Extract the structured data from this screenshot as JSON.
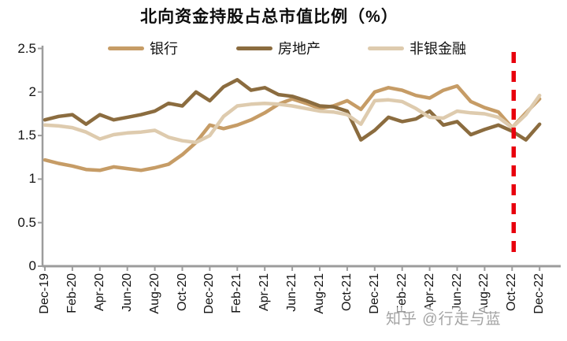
{
  "page": {
    "background": "#ffffff"
  },
  "chart_data": {
    "type": "line",
    "title": "北向资金持股占总市值比例（%）",
    "xlabel": "",
    "ylabel": "",
    "ylim": [
      0,
      2.5
    ],
    "y_ticks": [
      0,
      0.5,
      1,
      1.5,
      2,
      2.5
    ],
    "grid": false,
    "legend_position": "top",
    "x_tick_step": 2,
    "categories": [
      "Dec-19",
      "Jan-20",
      "Feb-20",
      "Mar-20",
      "Apr-20",
      "May-20",
      "Jun-20",
      "Jul-20",
      "Aug-20",
      "Sep-20",
      "Oct-20",
      "Nov-20",
      "Dec-20",
      "Jan-21",
      "Feb-21",
      "Mar-21",
      "Apr-21",
      "May-21",
      "Jun-21",
      "Jul-21",
      "Aug-21",
      "Sep-21",
      "Oct-21",
      "Nov-21",
      "Dec-21",
      "Jan-22",
      "Feb-22",
      "Mar-22",
      "Apr-22",
      "May-22",
      "Jun-22",
      "Jul-22",
      "Aug-22",
      "Sep-22",
      "Oct-22",
      "Nov-22",
      "Dec-22"
    ],
    "series": [
      {
        "name": "银行",
        "key": "bank",
        "color": "#C69C66",
        "values": [
          1.22,
          1.18,
          1.15,
          1.11,
          1.1,
          1.14,
          1.12,
          1.1,
          1.13,
          1.17,
          1.28,
          1.42,
          1.62,
          1.58,
          1.62,
          1.68,
          1.76,
          1.86,
          1.92,
          1.87,
          1.81,
          1.84,
          1.9,
          1.8,
          2.0,
          2.05,
          2.02,
          1.96,
          1.93,
          2.02,
          2.07,
          1.89,
          1.82,
          1.77,
          1.59,
          1.76,
          1.92
        ]
      },
      {
        "name": "房地产",
        "key": "real-estate",
        "color": "#8B6C3F",
        "values": [
          1.68,
          1.72,
          1.74,
          1.63,
          1.74,
          1.68,
          1.71,
          1.74,
          1.78,
          1.87,
          1.84,
          2.0,
          1.9,
          2.06,
          2.14,
          2.02,
          2.05,
          1.97,
          1.95,
          1.9,
          1.84,
          1.83,
          1.78,
          1.45,
          1.56,
          1.71,
          1.66,
          1.69,
          1.78,
          1.62,
          1.66,
          1.51,
          1.57,
          1.62,
          1.55,
          1.45,
          1.63
        ]
      },
      {
        "name": "非银金融",
        "key": "non-bank-financial",
        "color": "#DECBAE",
        "values": [
          1.62,
          1.61,
          1.59,
          1.54,
          1.46,
          1.51,
          1.53,
          1.54,
          1.56,
          1.48,
          1.44,
          1.42,
          1.5,
          1.72,
          1.84,
          1.86,
          1.87,
          1.86,
          1.84,
          1.81,
          1.78,
          1.77,
          1.74,
          1.63,
          1.9,
          1.91,
          1.89,
          1.81,
          1.71,
          1.7,
          1.78,
          1.76,
          1.75,
          1.71,
          1.59,
          1.74,
          1.96
        ]
      }
    ],
    "marker_line": {
      "category": "Oct-22",
      "color": "#E8000D",
      "style": "dashed"
    }
  },
  "axis": {
    "line_color": "#9C9C9C",
    "tick_color": "#9C9C9C",
    "label_color": "#141414"
  },
  "watermark": {
    "text": "知乎 @行走与蓝"
  }
}
